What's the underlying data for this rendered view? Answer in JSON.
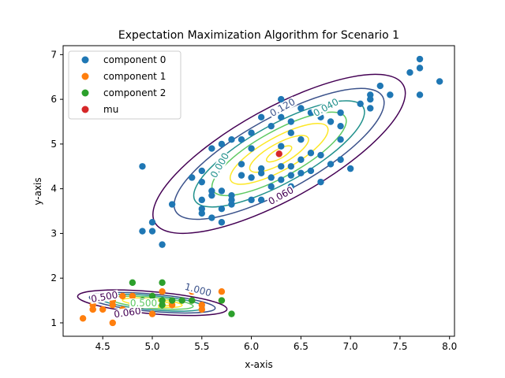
{
  "chart_data": {
    "type": "scatter",
    "title": "Expectation Maximization Algorithm for Scenario 1",
    "xlabel": "x-axis",
    "ylabel": "y-axis",
    "xlim": [
      4.1,
      8.05
    ],
    "ylim": [
      0.7,
      7.2
    ],
    "xticks": [
      "4.5",
      "5.0",
      "5.5",
      "6.0",
      "6.5",
      "7.0",
      "7.5",
      "8.0"
    ],
    "xtick_values": [
      4.5,
      5.0,
      5.5,
      6.0,
      6.5,
      7.0,
      7.5,
      8.0
    ],
    "yticks": [
      "1",
      "2",
      "3",
      "4",
      "5",
      "6",
      "7"
    ],
    "ytick_values": [
      1,
      2,
      3,
      4,
      5,
      6,
      7
    ],
    "grid": false,
    "legend_position": "top-left",
    "series": [
      {
        "name": "component 0",
        "color": "#1f77b4",
        "points": [
          [
            4.9,
            4.5
          ],
          [
            4.9,
            3.05
          ],
          [
            5.0,
            3.05
          ],
          [
            5.0,
            3.25
          ],
          [
            5.1,
            2.75
          ],
          [
            5.2,
            3.65
          ],
          [
            5.4,
            4.25
          ],
          [
            5.5,
            4.15
          ],
          [
            5.5,
            3.75
          ],
          [
            5.5,
            3.55
          ],
          [
            5.5,
            3.45
          ],
          [
            5.6,
            3.35
          ],
          [
            5.6,
            3.85
          ],
          [
            5.6,
            3.95
          ],
          [
            5.6,
            4.9
          ],
          [
            5.7,
            3.25
          ],
          [
            5.7,
            3.55
          ],
          [
            5.7,
            3.95
          ],
          [
            5.7,
            5.0
          ],
          [
            5.8,
            3.85
          ],
          [
            5.8,
            5.1
          ],
          [
            5.8,
            3.65
          ],
          [
            5.8,
            3.75
          ],
          [
            5.9,
            5.1
          ],
          [
            5.9,
            4.55
          ],
          [
            5.9,
            4.3
          ],
          [
            6.0,
            4.25
          ],
          [
            6.0,
            4.9
          ],
          [
            6.0,
            5.25
          ],
          [
            6.0,
            3.75
          ],
          [
            6.1,
            4.45
          ],
          [
            6.1,
            4.35
          ],
          [
            6.1,
            5.6
          ],
          [
            6.1,
            3.75
          ],
          [
            6.2,
            4.25
          ],
          [
            6.2,
            4.05
          ],
          [
            6.2,
            5.4
          ],
          [
            6.3,
            4.5
          ],
          [
            6.3,
            4.95
          ],
          [
            6.3,
            5.6
          ],
          [
            6.3,
            6.0
          ],
          [
            6.3,
            4.2
          ],
          [
            6.4,
            4.5
          ],
          [
            6.4,
            5.5
          ],
          [
            6.4,
            5.25
          ],
          [
            6.4,
            4.05
          ],
          [
            6.5,
            5.1
          ],
          [
            6.5,
            4.65
          ],
          [
            6.5,
            5.8
          ],
          [
            6.5,
            4.35
          ],
          [
            6.6,
            4.4
          ],
          [
            6.6,
            5.7
          ],
          [
            6.7,
            5.6
          ],
          [
            6.7,
            5.75
          ],
          [
            6.7,
            4.75
          ],
          [
            6.7,
            4.15
          ],
          [
            6.8,
            5.5
          ],
          [
            6.8,
            5.9
          ],
          [
            6.8,
            4.55
          ],
          [
            6.9,
            5.4
          ],
          [
            6.9,
            5.1
          ],
          [
            6.9,
            5.7
          ],
          [
            6.9,
            4.65
          ],
          [
            7.0,
            4.45
          ],
          [
            7.1,
            5.9
          ],
          [
            7.2,
            6.0
          ],
          [
            7.2,
            6.1
          ],
          [
            7.2,
            5.8
          ],
          [
            7.3,
            6.3
          ],
          [
            7.4,
            6.1
          ],
          [
            7.6,
            6.6
          ],
          [
            7.7,
            6.9
          ],
          [
            7.7,
            6.7
          ],
          [
            7.7,
            6.1
          ],
          [
            7.9,
            6.4
          ],
          [
            6.6,
            4.8
          ],
          [
            6.4,
            4.3
          ],
          [
            5.5,
            4.4
          ]
        ]
      },
      {
        "name": "component 1",
        "color": "#ff7f0e",
        "points": [
          [
            4.3,
            1.1
          ],
          [
            4.4,
            1.3
          ],
          [
            4.4,
            1.4
          ],
          [
            4.4,
            1.3
          ],
          [
            4.5,
            1.3
          ],
          [
            4.6,
            1.0
          ],
          [
            4.6,
            1.4
          ],
          [
            4.6,
            1.5
          ],
          [
            4.7,
            1.3
          ],
          [
            4.7,
            1.6
          ],
          [
            4.8,
            1.4
          ],
          [
            4.8,
            1.6
          ],
          [
            4.9,
            1.4
          ],
          [
            4.9,
            1.5
          ],
          [
            5.0,
            1.2
          ],
          [
            5.0,
            1.4
          ],
          [
            5.0,
            1.5
          ],
          [
            5.0,
            1.6
          ],
          [
            5.1,
            1.4
          ],
          [
            5.1,
            1.5
          ],
          [
            5.1,
            1.7
          ],
          [
            5.2,
            1.4
          ],
          [
            5.2,
            1.5
          ],
          [
            5.3,
            1.5
          ],
          [
            5.4,
            1.5
          ],
          [
            5.4,
            1.7
          ],
          [
            5.5,
            1.3
          ],
          [
            5.5,
            1.4
          ],
          [
            5.7,
            1.7
          ],
          [
            5.7,
            1.5
          ]
        ]
      },
      {
        "name": "component 2",
        "color": "#2ca02c",
        "points": [
          [
            4.8,
            1.9
          ],
          [
            5.1,
            1.9
          ],
          [
            5.0,
            1.6
          ],
          [
            5.1,
            1.5
          ],
          [
            5.3,
            1.5
          ],
          [
            5.4,
            1.5
          ],
          [
            5.7,
            1.5
          ],
          [
            5.8,
            1.2
          ],
          [
            5.1,
            1.4
          ],
          [
            4.9,
            1.5
          ],
          [
            5.2,
            1.5
          ]
        ]
      },
      {
        "name": "mu",
        "color": "#d62728",
        "points": [
          [
            6.28,
            4.78
          ],
          [
            5.0,
            1.45
          ]
        ]
      }
    ],
    "contours": {
      "colormap": "viridis",
      "labels": [
        "0.060",
        "0.120",
        "0.040",
        "0.500",
        "0.060",
        "0.000",
        "1.000",
        "0.500"
      ]
    }
  }
}
